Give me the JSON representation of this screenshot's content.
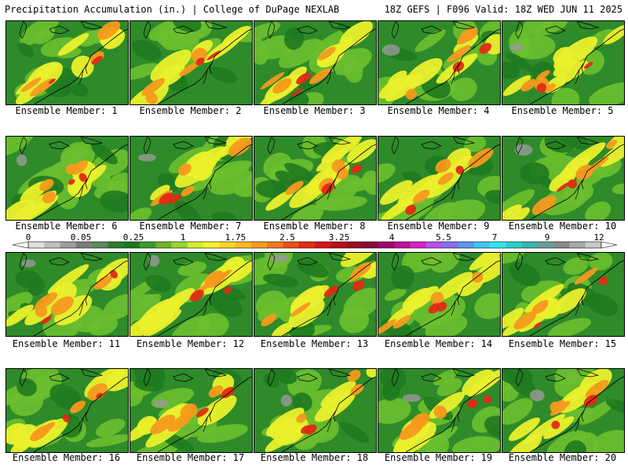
{
  "header": {
    "left": "Precipitation Accumulation (in.) | College of DuPage NEXLAB",
    "right": "18Z GEFS | F096 Valid: 18Z WED JUN 11 2025"
  },
  "members": [
    {
      "label": "Ensemble Member: 1"
    },
    {
      "label": "Ensemble Member: 2"
    },
    {
      "label": "Ensemble Member: 3"
    },
    {
      "label": "Ensemble Member: 4"
    },
    {
      "label": "Ensemble Member: 5"
    },
    {
      "label": "Ensemble Member: 6"
    },
    {
      "label": "Ensemble Member: 7"
    },
    {
      "label": "Ensemble Member: 8"
    },
    {
      "label": "Ensemble Member: 9"
    },
    {
      "label": "Ensemble Member: 10"
    },
    {
      "label": "Ensemble Member: 11"
    },
    {
      "label": "Ensemble Member: 12"
    },
    {
      "label": "Ensemble Member: 13"
    },
    {
      "label": "Ensemble Member: 14"
    },
    {
      "label": "Ensemble Member: 15"
    },
    {
      "label": "Ensemble Member: 16"
    },
    {
      "label": "Ensemble Member: 17"
    },
    {
      "label": "Ensemble Member: 18"
    },
    {
      "label": "Ensemble Member: 19"
    },
    {
      "label": "Ensemble Member: 20"
    }
  ],
  "colorbar": {
    "ticks": [
      "0",
      "0.05",
      "0.25",
      "1",
      "1.75",
      "2.5",
      "3.25",
      "4",
      "5.5",
      "7",
      "9",
      "12"
    ],
    "colors": [
      "#e0e0e0",
      "#bfbfbf",
      "#9e9e9e",
      "#7d7d7d",
      "#5c8a5c",
      "#2f7d2f",
      "#1e7a1e",
      "#3c9a2a",
      "#6ab82a",
      "#9ad62a",
      "#d8ee2a",
      "#f4f42a",
      "#f8d820",
      "#f8bc20",
      "#f89c1e",
      "#f4781a",
      "#ee5216",
      "#e82a12",
      "#d8141a",
      "#b8101a",
      "#981020",
      "#8a0a3a",
      "#a0086a",
      "#c0109a",
      "#d824c8",
      "#b850e8",
      "#8a6cf0",
      "#5c98f0",
      "#3cc8f0",
      "#2ee6ee",
      "#28d0c8",
      "#3cb4b4",
      "#6a9e9e",
      "#8a8a8a",
      "#a8a8a8",
      "#c8c8c8"
    ]
  }
}
